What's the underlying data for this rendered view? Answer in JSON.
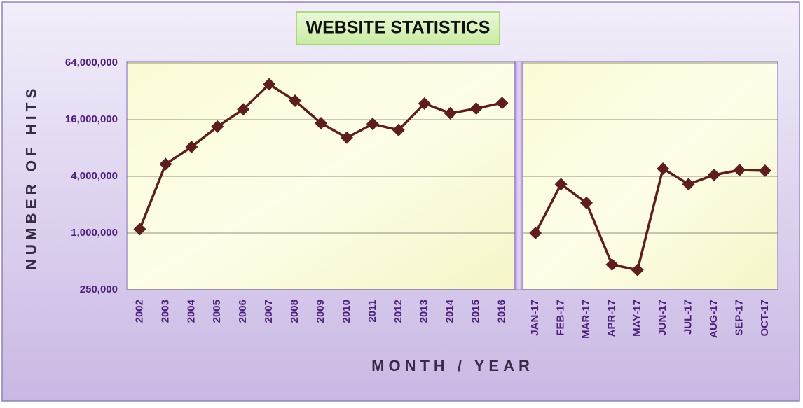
{
  "chart_data": [
    {
      "type": "line",
      "title": "WEBSITE STATISTICS",
      "x_label": "MONTH / YEAR",
      "y_label": "NUMBER OF HITS",
      "log_scale": true,
      "grid": true,
      "color": "#5e1e1e",
      "categories": [
        "2002",
        "2003",
        "2004",
        "2005",
        "2006",
        "2007",
        "2008",
        "2009",
        "2010",
        "2011",
        "2012",
        "2013",
        "2014",
        "2015",
        "2016"
      ],
      "values": [
        1100000,
        5400000,
        8200000,
        13500000,
        20600000,
        38000000,
        25400000,
        14700000,
        10300000,
        14400000,
        12400000,
        23700000,
        18700000,
        21000000,
        24100000
      ],
      "ylim": [
        250000,
        64000000
      ],
      "yticks": [
        {
          "value": 250000,
          "label": "250,000"
        },
        {
          "value": 1000000,
          "label": "1,000,000"
        },
        {
          "value": 4000000,
          "label": "4,000,000"
        },
        {
          "value": 16000000,
          "label": "16,000,000"
        },
        {
          "value": 64000000,
          "label": "64,000,000"
        }
      ]
    },
    {
      "type": "line",
      "log_scale": true,
      "grid": true,
      "color": "#5e1e1e",
      "categories": [
        "JAN-17",
        "FEB-17",
        "MAR-17",
        "APR-17",
        "MAY-17",
        "JUN-17",
        "JUL-17",
        "AUG-17",
        "SEP-17",
        "OCT-17"
      ],
      "values": [
        1000000,
        3300000,
        2090000,
        463000,
        405000,
        4830000,
        3300000,
        4140000,
        4670000,
        4600000
      ],
      "ylim": [
        250000,
        64000000
      ],
      "yticks": [
        250000,
        1000000,
        4000000,
        16000000,
        64000000
      ]
    }
  ]
}
